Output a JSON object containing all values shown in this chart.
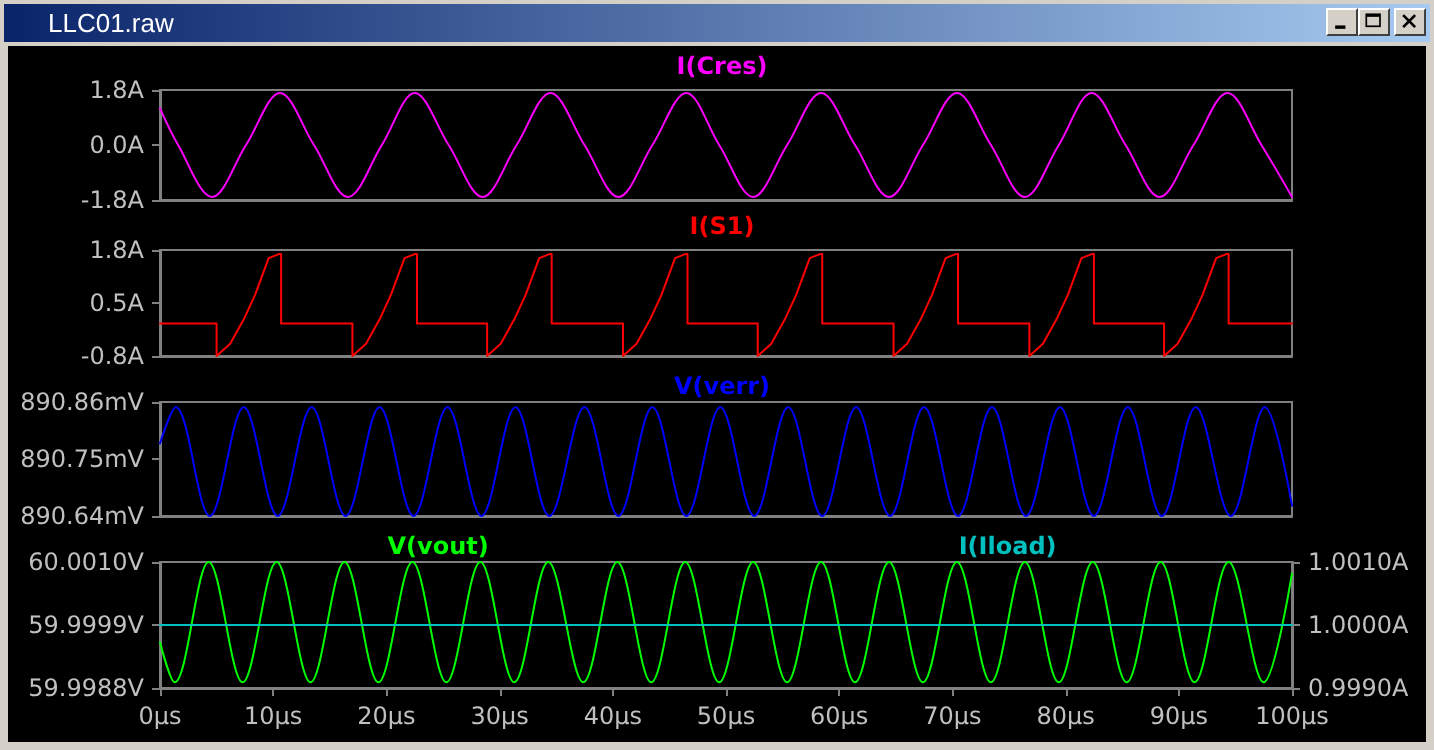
{
  "chart_data": [
    {
      "type": "line",
      "annotations": [
        "LLC01.raw"
      ],
      "legend": "top",
      "tick_labels": "y",
      "xlim": [
        0,
        100
      ],
      "ylim": [
        -1.8,
        1.8
      ],
      "yticks": [
        {
          "value": 1.8,
          "label": "1.8A"
        },
        {
          "value": 0,
          "label": "0.0A"
        },
        {
          "value": -1.8,
          "label": "-1.8A"
        }
      ],
      "series": [
        {
          "name": "I(Cres)",
          "color": "#ff00ff",
          "x": [
            0,
            1.6,
            4.6,
            7.6,
            10.6,
            13.6,
            16.6,
            19.6,
            22.5,
            25.5,
            28.5,
            31.5,
            34.5,
            37.5,
            40.5,
            43.5,
            46.5,
            49.4,
            52.4,
            55.4,
            58.4,
            61.4,
            64.4,
            67.4,
            70.4,
            73.4,
            76.4,
            79.4,
            82.3,
            85.3,
            88.3,
            91.3,
            94.3,
            97.3,
            100
          ],
          "values": [
            1.2,
            0,
            -1.7,
            0,
            1.7,
            0,
            -1.7,
            0,
            1.7,
            0,
            -1.7,
            0,
            1.7,
            0,
            -1.7,
            0,
            1.7,
            0,
            -1.7,
            0,
            1.7,
            0,
            -1.7,
            0,
            1.7,
            0,
            -1.7,
            0,
            1.7,
            0,
            -1.7,
            0,
            1.7,
            0,
            -1.7
          ]
        }
      ]
    },
    {
      "type": "line",
      "legend": "top",
      "tick_labels": "y",
      "xlim": [
        0,
        100
      ],
      "ylim": [
        -0.8,
        1.8
      ],
      "yticks": [
        {
          "value": 1.8,
          "label": "1.8A"
        },
        {
          "value": 0.5,
          "label": "0.5A"
        },
        {
          "value": -0.8,
          "label": "-0.8A"
        }
      ],
      "series": [
        {
          "name": "I(S1)",
          "color": "#ff0000",
          "x": [
            0,
            5.0,
            5.0,
            6.2,
            7.4,
            8.4,
            9.6,
            10.5,
            10.7,
            10.7,
            17.0,
            17.0,
            18.2,
            19.4,
            20.4,
            21.6,
            22.5,
            22.7,
            22.7,
            28.9,
            28.9,
            30.1,
            31.3,
            32.3,
            33.5,
            34.4,
            34.6,
            34.6,
            40.9,
            40.9,
            42.1,
            43.3,
            44.3,
            45.5,
            46.4,
            46.6,
            46.6,
            52.8,
            52.8,
            54.0,
            55.2,
            56.2,
            57.4,
            58.3,
            58.5,
            58.5,
            64.8,
            64.8,
            66.0,
            67.2,
            68.2,
            69.4,
            70.3,
            70.5,
            70.5,
            76.8,
            76.8,
            78.0,
            79.2,
            80.2,
            81.4,
            82.3,
            82.5,
            82.5,
            88.7,
            88.7,
            89.9,
            91.1,
            92.1,
            93.3,
            94.2,
            94.4,
            94.4,
            100
          ],
          "values": [
            0,
            0,
            -0.8,
            -0.5,
            0.1,
            0.7,
            1.6,
            1.7,
            1.7,
            0,
            0,
            -0.8,
            -0.5,
            0.1,
            0.7,
            1.6,
            1.7,
            1.7,
            0,
            0,
            -0.8,
            -0.5,
            0.1,
            0.7,
            1.6,
            1.7,
            1.7,
            0,
            0,
            -0.8,
            -0.5,
            0.1,
            0.7,
            1.6,
            1.7,
            1.7,
            0,
            0,
            -0.8,
            -0.5,
            0.1,
            0.7,
            1.6,
            1.7,
            1.7,
            0,
            0,
            -0.8,
            -0.5,
            0.1,
            0.7,
            1.6,
            1.7,
            1.7,
            0,
            0,
            -0.8,
            -0.5,
            0.1,
            0.7,
            1.6,
            1.7,
            1.7,
            0,
            0,
            -0.8,
            -0.5,
            0.1,
            0.7,
            1.6,
            1.7,
            1.7,
            0,
            0
          ]
        }
      ]
    },
    {
      "type": "line",
      "legend": "top",
      "tick_labels": "y",
      "xlim": [
        0,
        100
      ],
      "ylim": [
        890.64,
        890.86
      ],
      "yticks": [
        {
          "value": 890.86,
          "label": "890.86mV"
        },
        {
          "value": 890.75,
          "label": "890.75mV"
        },
        {
          "value": 890.64,
          "label": "890.64mV"
        }
      ],
      "series": [
        {
          "name": "V(verr)",
          "color": "#0000ff",
          "x": [
            0,
            1.4,
            4.4,
            7.4,
            10.4,
            13.4,
            16.4,
            19.4,
            22.4,
            25.4,
            28.4,
            31.4,
            34.4,
            37.5,
            40.5,
            43.5,
            46.5,
            49.5,
            52.5,
            55.5,
            58.5,
            61.5,
            64.5,
            67.5,
            70.5,
            73.5,
            76.5,
            79.5,
            82.5,
            85.5,
            88.5,
            91.5,
            94.6,
            97.6,
            100
          ],
          "values": [
            890.78,
            890.85,
            890.64,
            890.85,
            890.64,
            890.85,
            890.64,
            890.85,
            890.64,
            890.85,
            890.64,
            890.85,
            890.64,
            890.85,
            890.64,
            890.85,
            890.64,
            890.85,
            890.64,
            890.85,
            890.64,
            890.85,
            890.64,
            890.85,
            890.64,
            890.85,
            890.64,
            890.85,
            890.64,
            890.85,
            890.64,
            890.85,
            890.64,
            890.85,
            890.66
          ]
        }
      ]
    },
    {
      "type": "line",
      "legend": "top",
      "xlim": [
        0,
        100
      ],
      "xticks": [
        {
          "value": 0,
          "label": "0µs"
        },
        {
          "value": 10,
          "label": "10µs"
        },
        {
          "value": 20,
          "label": "20µs"
        },
        {
          "value": 30,
          "label": "30µs"
        },
        {
          "value": 40,
          "label": "40µs"
        },
        {
          "value": 50,
          "label": "50µs"
        },
        {
          "value": 60,
          "label": "60µs"
        },
        {
          "value": 70,
          "label": "70µs"
        },
        {
          "value": 80,
          "label": "80µs"
        },
        {
          "value": 90,
          "label": "90µs"
        },
        {
          "value": 100,
          "label": "100µs"
        }
      ],
      "ylim": [
        59.9988,
        60.001
      ],
      "yticks": [
        {
          "value": 60.001,
          "label": "60.0010V"
        },
        {
          "value": 59.9999,
          "label": "59.9999V"
        },
        {
          "value": 59.9988,
          "label": "59.9988V"
        }
      ],
      "y2lim": [
        0.999,
        1.001
      ],
      "y2ticks": [
        {
          "value": 1.001,
          "label": "1.0010A"
        },
        {
          "value": 1.0,
          "label": "1.0000A"
        },
        {
          "value": 0.999,
          "label": "0.9990A"
        }
      ],
      "series": [
        {
          "name": "V(vout)",
          "color": "#00ff00",
          "x": [
            0,
            1.3,
            4.3,
            7.3,
            10.3,
            13.3,
            16.3,
            19.3,
            22.3,
            25.3,
            28.3,
            31.3,
            34.3,
            37.4,
            40.4,
            43.4,
            46.4,
            49.4,
            52.4,
            55.4,
            58.4,
            61.4,
            64.4,
            67.4,
            70.4,
            73.4,
            76.4,
            79.4,
            82.4,
            85.4,
            88.4,
            91.4,
            94.4,
            97.5,
            100
          ],
          "values": [
            59.9996,
            59.9989,
            60.001,
            59.9989,
            60.001,
            59.9989,
            60.001,
            59.9989,
            60.001,
            59.9989,
            60.001,
            59.9989,
            60.001,
            59.9989,
            60.001,
            59.9989,
            60.001,
            59.9989,
            60.001,
            59.9989,
            60.001,
            59.9989,
            60.001,
            59.9989,
            60.001,
            59.9989,
            60.001,
            59.9989,
            60.001,
            59.9989,
            60.001,
            59.9989,
            60.001,
            59.9989,
            60.0008
          ]
        },
        {
          "name": "I(Iload)",
          "color": "#00c0c0",
          "axis": "y2",
          "x": [
            0,
            100
          ],
          "values": [
            1.0,
            1.0
          ]
        }
      ]
    }
  ]
}
